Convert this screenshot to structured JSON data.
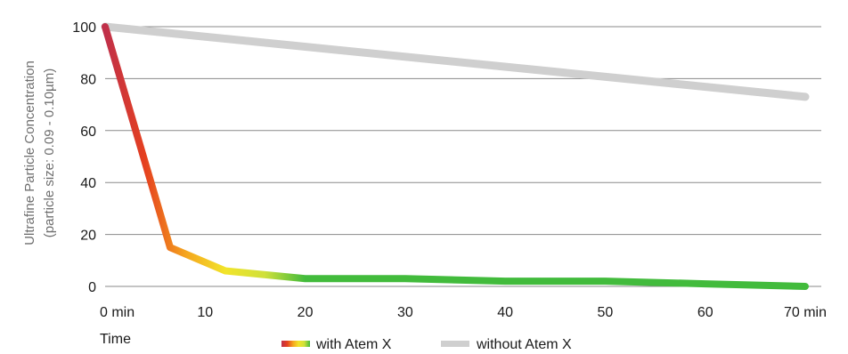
{
  "chart_data": {
    "type": "line",
    "ylabel": "Ultrafine Particle Concentration",
    "ylabel_sub": "(particle size: 0.09 - 0.10µm)",
    "xlabel": "Time",
    "ylim": [
      0,
      100
    ],
    "xlim": [
      0,
      70
    ],
    "y_ticks": [
      0,
      20,
      40,
      60,
      80,
      100
    ],
    "x_ticks": [
      {
        "value": 0,
        "label": "0 min"
      },
      {
        "value": 10,
        "label": "10"
      },
      {
        "value": 20,
        "label": "20"
      },
      {
        "value": 30,
        "label": "30"
      },
      {
        "value": 40,
        "label": "40"
      },
      {
        "value": 50,
        "label": "50"
      },
      {
        "value": 60,
        "label": "60"
      },
      {
        "value": 70,
        "label": "70 min"
      }
    ],
    "grid": "horizontal",
    "legend_position": "bottom",
    "series": [
      {
        "name": "with Atem X",
        "colors": [
          "#c0304a",
          "#e5401f",
          "#f5a41e",
          "#f2e42a",
          "#cfe03a",
          "#42bb3c"
        ],
        "x": [
          0,
          6.5,
          12,
          20,
          30,
          40,
          50,
          60,
          70
        ],
        "y": [
          100,
          15,
          6,
          3,
          3,
          2,
          2,
          1,
          0
        ]
      },
      {
        "name": "without Atem X",
        "color": "#cfcfcf",
        "x": [
          0,
          70
        ],
        "y": [
          100,
          73
        ]
      }
    ]
  }
}
